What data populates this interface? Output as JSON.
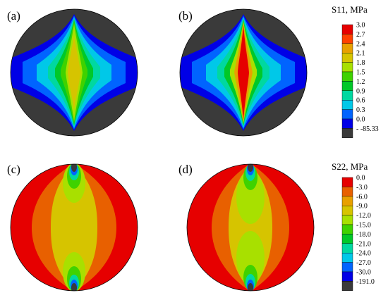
{
  "panels": [
    {
      "label": "(a)"
    },
    {
      "label": "(b)"
    },
    {
      "label": "(c)"
    },
    {
      "label": "(d)"
    }
  ],
  "legends": [
    {
      "title": "S11, MPa",
      "ticks": [
        "3.0",
        "2.7",
        "2.4",
        "2.1",
        "1.8",
        "1.5",
        "1.2",
        "0.9",
        "0.6",
        "0.3",
        "0.0",
        "- -85.33"
      ],
      "colors": [
        "#e60000",
        "#ff4000",
        "#e8a000",
        "#d6c400",
        "#a8e000",
        "#3fd200",
        "#00c828",
        "#00d8a0",
        "#00c8e8",
        "#0064ff",
        "#0000e6",
        "#3a3a3a"
      ]
    },
    {
      "title": "S22, MPa",
      "ticks": [
        "0.0",
        "-3.0",
        "-6.0",
        "-9.0",
        "-12.0",
        "-15.0",
        "-18.0",
        "-21.0",
        "-24.0",
        "-27.0",
        "-30.0",
        "-191.0"
      ],
      "colors": [
        "#e60000",
        "#e86000",
        "#e8a000",
        "#d6c400",
        "#a8e000",
        "#3fd200",
        "#00c828",
        "#00d8a0",
        "#00c8e8",
        "#0064ff",
        "#0000e6",
        "#3a3a3a"
      ]
    }
  ]
}
